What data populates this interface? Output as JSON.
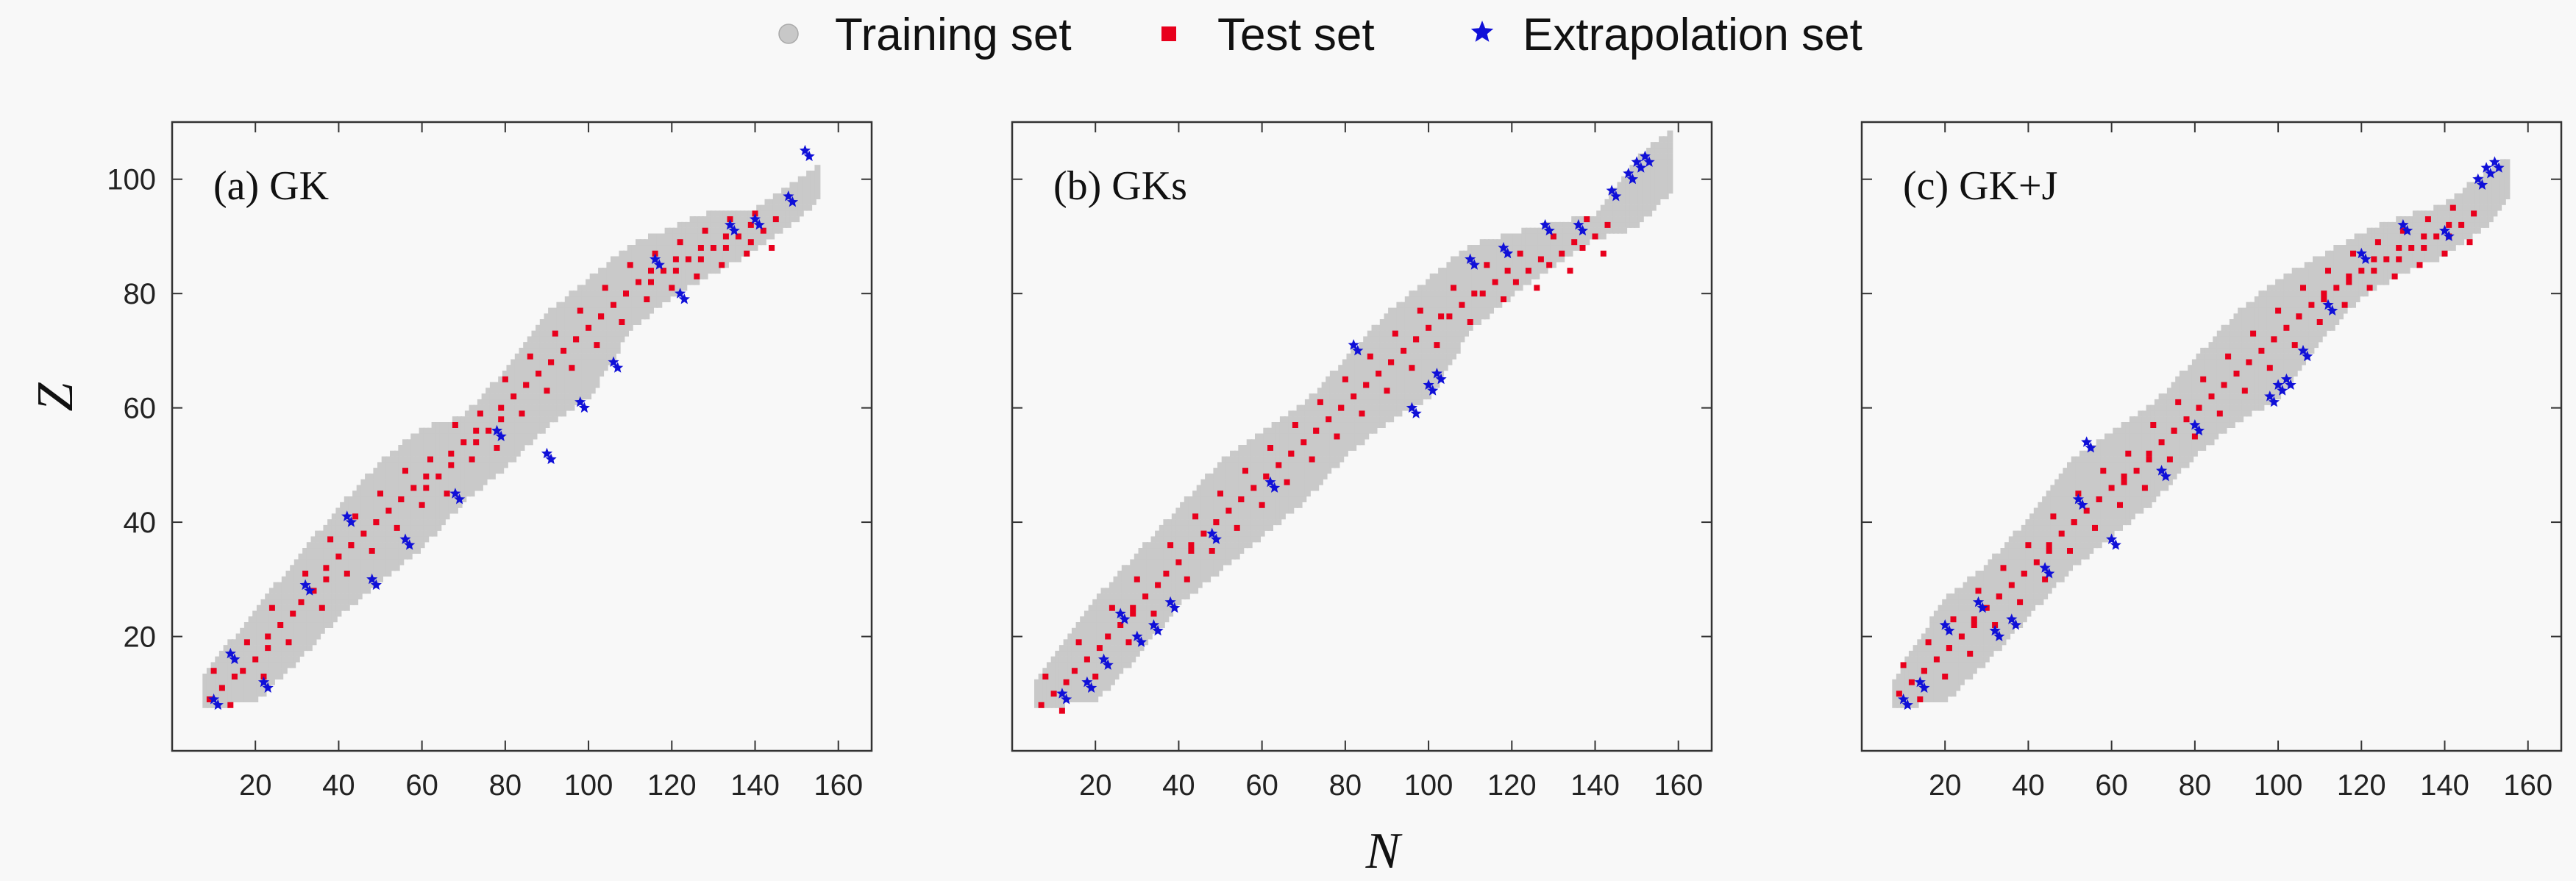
{
  "legend": {
    "items": [
      {
        "label": "Training set",
        "marker": "circle",
        "color": "#c8c8c8"
      },
      {
        "label": "Test set",
        "marker": "square",
        "color": "#e8001c"
      },
      {
        "label": "Extrapolation set",
        "marker": "star",
        "color": "#1010d8"
      }
    ]
  },
  "axes": {
    "xlabel": "N",
    "ylabel": "Z",
    "xticks": [
      20,
      40,
      60,
      80,
      100,
      120,
      140,
      160
    ],
    "yticks": [
      20,
      40,
      60,
      80,
      100
    ],
    "xlim": [
      0,
      168
    ],
    "ylim": [
      0,
      110
    ]
  },
  "chart_data": [
    {
      "type": "scatter",
      "title": "(a) GK",
      "training_band": {
        "N": [
          8,
          20,
          30,
          40,
          50,
          60,
          70,
          80,
          90,
          100,
          110,
          120,
          130,
          140,
          150,
          155
        ],
        "Z_low": [
          8,
          9,
          16,
          24,
          30,
          36,
          44,
          50,
          57,
          62,
          74,
          80,
          84,
          88,
          93,
          97
        ],
        "Z_high": [
          13,
          24,
          33,
          42,
          50,
          56,
          58,
          66,
          76,
          82,
          88,
          91,
          94,
          94,
          99,
          102
        ]
      },
      "test_set_sample": {
        "N": [
          12,
          20,
          26,
          34,
          40,
          46,
          52,
          58,
          64,
          70,
          76,
          82,
          88,
          94,
          100,
          106,
          112,
          118,
          124,
          130,
          136,
          142
        ],
        "Z": [
          11,
          16,
          22,
          28,
          34,
          38,
          42,
          46,
          48,
          54,
          56,
          62,
          66,
          70,
          74,
          78,
          82,
          84,
          86,
          88,
          90,
          91
        ]
      },
      "extrapolation_set_sample": {
        "N": [
          10,
          14,
          22,
          32,
          42,
          48,
          56,
          68,
          78,
          90,
          98,
          106,
          116,
          122,
          134,
          140,
          148,
          152
        ],
        "Z": [
          9,
          17,
          12,
          29,
          41,
          30,
          37,
          45,
          56,
          52,
          61,
          68,
          86,
          80,
          92,
          93,
          97,
          105
        ]
      }
    },
    {
      "type": "scatter",
      "title": "(b) GKs",
      "training_band": {
        "N": [
          6,
          20,
          30,
          40,
          50,
          60,
          70,
          80,
          90,
          100,
          110,
          120,
          130,
          140,
          150,
          158
        ],
        "Z_low": [
          8,
          9,
          17,
          26,
          32,
          38,
          44,
          52,
          58,
          62,
          74,
          80,
          85,
          90,
          92,
          98
        ],
        "Z_high": [
          12,
          26,
          34,
          42,
          50,
          55,
          60,
          68,
          76,
          82,
          88,
          90,
          92,
          93,
          103,
          108
        ]
      },
      "test_set_sample": {
        "N": [
          10,
          18,
          26,
          32,
          40,
          46,
          52,
          58,
          64,
          70,
          76,
          82,
          88,
          94,
          100,
          108,
          116,
          124,
          132,
          140
        ],
        "Z": [
          10,
          16,
          22,
          27,
          33,
          38,
          42,
          46,
          50,
          54,
          58,
          62,
          66,
          70,
          74,
          78,
          82,
          84,
          87,
          90
        ]
      },
      "extrapolation_set_sample": {
        "N": [
          12,
          18,
          22,
          26,
          30,
          34,
          38,
          48,
          62,
          82,
          96,
          100,
          102,
          110,
          118,
          128,
          136,
          144,
          148,
          150,
          152
        ],
        "Z": [
          10,
          12,
          16,
          24,
          20,
          22,
          26,
          38,
          47,
          71,
          60,
          64,
          66,
          86,
          88,
          92,
          92,
          98,
          101,
          103,
          104
        ]
      }
    },
    {
      "type": "scatter",
      "title": "(c) GK+J",
      "training_band": {
        "N": [
          8,
          20,
          30,
          40,
          50,
          60,
          70,
          80,
          90,
          100,
          110,
          120,
          130,
          140,
          150,
          155
        ],
        "Z_low": [
          8,
          9,
          16,
          24,
          32,
          38,
          44,
          52,
          58,
          62,
          72,
          80,
          84,
          87,
          92,
          97
        ],
        "Z_high": [
          12,
          26,
          32,
          40,
          50,
          55,
          60,
          68,
          76,
          82,
          86,
          90,
          93,
          95,
          101,
          103
        ]
      },
      "test_set_sample": {
        "N": [
          12,
          18,
          24,
          30,
          36,
          42,
          48,
          54,
          60,
          66,
          72,
          78,
          84,
          90,
          96,
          102,
          108,
          114,
          120,
          126,
          132,
          138,
          144
        ],
        "Z": [
          12,
          16,
          20,
          25,
          29,
          33,
          38,
          42,
          46,
          49,
          54,
          58,
          62,
          66,
          70,
          74,
          78,
          81,
          84,
          86,
          88,
          90,
          92
        ]
      },
      "extrapolation_set_sample": {
        "N": [
          10,
          14,
          20,
          28,
          32,
          36,
          44,
          52,
          54,
          60,
          72,
          80,
          98,
          100,
          102,
          106,
          112,
          120,
          130,
          140,
          148,
          150,
          152
        ],
        "Z": [
          9,
          12,
          22,
          26,
          21,
          23,
          32,
          44,
          54,
          37,
          49,
          57,
          62,
          64,
          65,
          70,
          78,
          87,
          92,
          91,
          100,
          102,
          103
        ]
      }
    }
  ]
}
